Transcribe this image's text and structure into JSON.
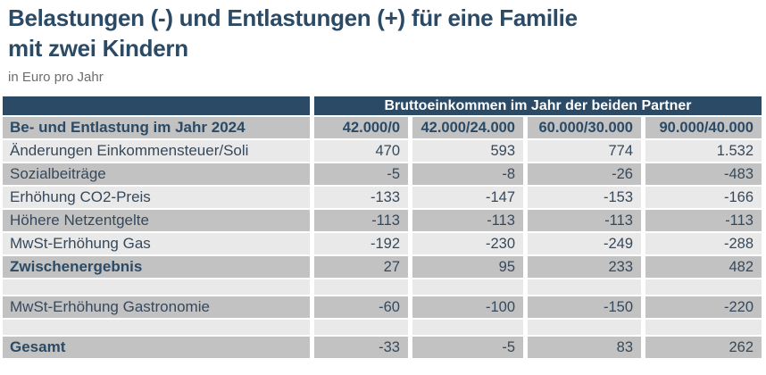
{
  "header": {
    "title_line1": "Belastungen (-) und Entlastungen (+) für eine Familie",
    "title_line2": "mit zwei Kindern",
    "subtitle": "in Euro pro Jahr"
  },
  "chart_data": {
    "type": "table",
    "title": "Belastungen (-) und Entlastungen (+) für eine Familie mit zwei Kindern",
    "subtitle": "in Euro pro Jahr",
    "group_header": "Bruttoeinkommen im Jahr der beiden Partner",
    "corner_header": "Be- und Entlastung im Jahr 2024",
    "columns": [
      "42.000/0",
      "42.000/24.000",
      "60.000/30.000",
      "90.000/40.000"
    ],
    "rows": [
      {
        "label": "Änderungen Einkommensteuer/Soli",
        "values": [
          "470",
          "593",
          "774",
          "1.532"
        ]
      },
      {
        "label": "Sozialbeiträge",
        "values": [
          "-5",
          "-8",
          "-26",
          "-483"
        ]
      },
      {
        "label": "Erhöhung CO2-Preis",
        "values": [
          "-133",
          "-147",
          "-153",
          "-166"
        ]
      },
      {
        "label": "Höhere Netzentgelte",
        "values": [
          "-113",
          "-113",
          "-113",
          "-113"
        ]
      },
      {
        "label": "MwSt-Erhöhung Gas",
        "values": [
          "-192",
          "-230",
          "-249",
          "-288"
        ]
      },
      {
        "label": "Zwischenergebnis",
        "values": [
          "27",
          "95",
          "233",
          "482"
        ],
        "emphasis": true
      },
      {
        "label": "MwSt-Erhöhung Gastronomie",
        "values": [
          "-60",
          "-100",
          "-150",
          "-220"
        ]
      },
      {
        "label": "Gesamt",
        "values": [
          "-33",
          "-5",
          "83",
          "262"
        ],
        "emphasis": true
      }
    ]
  },
  "colors": {
    "navy": "#2b4a66",
    "row_light": "#e9e9e9",
    "row_medium": "#c2c2c2",
    "text_dark": "#36495c",
    "subtitle_gray": "#6d6d6d"
  }
}
